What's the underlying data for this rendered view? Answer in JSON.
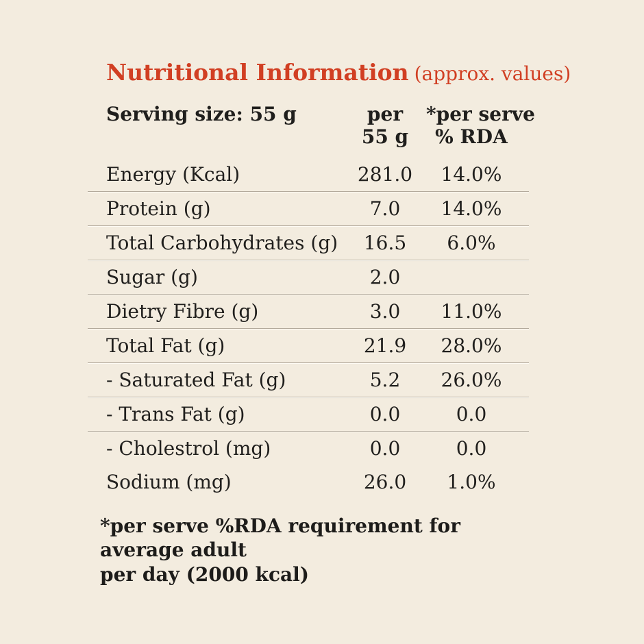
{
  "page": {
    "background_color": "#f3ecdf",
    "text_color": "#201f1d",
    "accent_color": "#d13f23",
    "divider_color": "#b3aa9c"
  },
  "title": {
    "main": "Nutritional Information",
    "suffix": "(approx. values)"
  },
  "table": {
    "serving_label": "Serving size: 55 g",
    "col_per_line1": "per",
    "col_per_line2": "55 g",
    "col_rda_line1": "*per serve",
    "col_rda_line2": "% RDA",
    "rows": [
      {
        "label": "Energy (Kcal)",
        "per_55g": "281.0",
        "rda": "14.0%"
      },
      {
        "label": "Protein (g)",
        "per_55g": "7.0",
        "rda": "14.0%"
      },
      {
        "label": "Total Carbohydrates (g)",
        "per_55g": "16.5",
        "rda": "6.0%"
      },
      {
        "label": "Sugar (g)",
        "per_55g": "2.0",
        "rda": ""
      },
      {
        "label": "Dietry Fibre (g)",
        "per_55g": "3.0",
        "rda": "11.0%"
      },
      {
        "label": "Total Fat (g)",
        "per_55g": "21.9",
        "rda": "28.0%"
      },
      {
        "label": "- Saturated Fat (g)",
        "per_55g": "5.2",
        "rda": "26.0%"
      },
      {
        "label": "- Trans Fat (g)",
        "per_55g": "0.0",
        "rda": "0.0"
      },
      {
        "label": "- Cholestrol (mg)",
        "per_55g": "0.0",
        "rda": "0.0"
      },
      {
        "label": "Sodium (mg)",
        "per_55g": "26.0",
        "rda": "1.0%"
      }
    ]
  },
  "footnote": {
    "line1": "*per serve %RDA requirement for average adult",
    "line2": "per day (2000 kcal)"
  }
}
